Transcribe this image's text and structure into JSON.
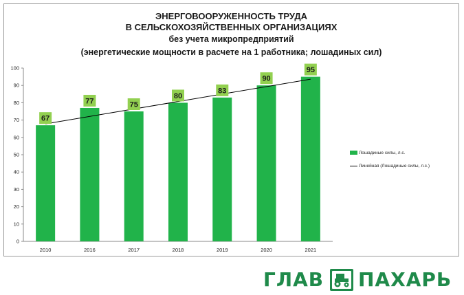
{
  "titles": {
    "line1": "ЭНЕРГОВООРУЖЕННОСТЬ ТРУДА",
    "line2": "В СЕЛЬСКОХОЗЯЙСТВЕННЫХ ОРГАНИЗАЦИЯХ",
    "line3": "без учета микропредприятий",
    "line4": "(энергетические мощности в расчете на 1 работника; лошадиных сил)"
  },
  "legend": {
    "bars": "Лошадиные силы, л.с.",
    "trend": "Линейная (Лошадиные силы, л.с.)"
  },
  "logo": {
    "left_text": "ГЛАВ",
    "right_text": "ПАХАРЬ"
  },
  "colors": {
    "bar": "#21b34a",
    "label_bg": "#92d050",
    "trend": "#000000",
    "logo": "#1f8a4a"
  },
  "chart_data": {
    "type": "bar",
    "categories": [
      "2010",
      "2016",
      "2017",
      "2018",
      "2019",
      "2020",
      "2021"
    ],
    "series": [
      {
        "name": "Лошадиные силы, л.с.",
        "values": [
          67,
          77,
          75,
          80,
          83,
          90,
          95
        ]
      }
    ],
    "trendline": {
      "name": "Линейная (Лошадиные силы, л.с.)",
      "type": "linear",
      "start": 67.8,
      "end": 93.6
    },
    "ylim": [
      0,
      100
    ],
    "yticks": [
      0,
      10,
      20,
      30,
      40,
      50,
      60,
      70,
      80,
      90,
      100
    ],
    "title": "ЭНЕРГОВООРУЖЕННОСТЬ ТРУДА В СЕЛЬСКОХОЗЯЙСТВЕННЫХ ОРГАНИЗАЦИЯХ",
    "subtitle": "без учета микропредприятий (энергетические мощности в расчете на 1 работника; лошадиных сил)",
    "xlabel": "",
    "ylabel": "",
    "grid": false,
    "legend_position": "right"
  }
}
